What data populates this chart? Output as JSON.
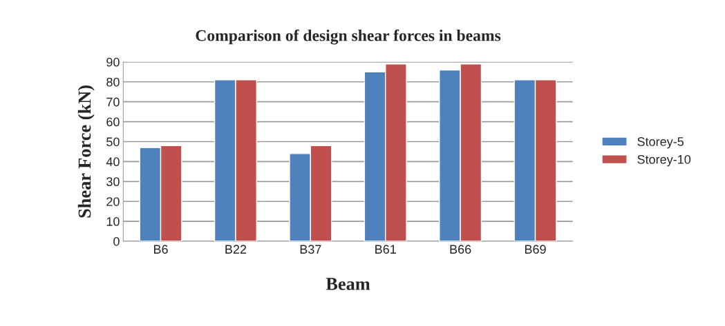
{
  "chart_data": {
    "type": "bar",
    "title": "Comparison of design shear forces in beams",
    "xlabel": "Beam",
    "ylabel": "Shear Force (kN)",
    "categories": [
      "B6",
      "B22",
      "B37",
      "B61",
      "B66",
      "B69"
    ],
    "series": [
      {
        "name": "Storey-5",
        "color": "#4f81bd",
        "values": [
          47,
          81,
          44,
          85,
          86,
          81
        ]
      },
      {
        "name": "Storey-10",
        "color": "#c0504d",
        "values": [
          48,
          81,
          48,
          89,
          89,
          81
        ]
      }
    ],
    "ylim": [
      0,
      90
    ],
    "yticks": [
      0,
      10,
      20,
      30,
      40,
      50,
      60,
      70,
      80,
      90
    ],
    "grid": "y",
    "legend": "right"
  }
}
